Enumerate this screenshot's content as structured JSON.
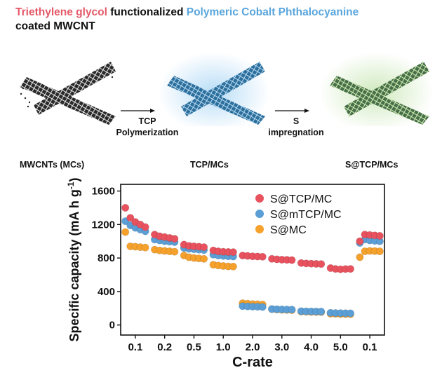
{
  "title": {
    "part1": "Triethylene glycol",
    "part2": " functionalized ",
    "part3": "Polymeric Cobalt Phthalocyanine",
    "line2": "coated MWCNT"
  },
  "stages": [
    {
      "label": "MWCNTs (MCs)",
      "color": "#1a1a1a"
    },
    {
      "label": "TCP/MCs",
      "color": "#3d7fb0"
    },
    {
      "label": "S@TCP/MCs",
      "color": "#7fae6a"
    }
  ],
  "arrows": [
    {
      "line1": "TCP",
      "line2": "Polymerization"
    },
    {
      "line1": "S",
      "line2": "impregnation"
    }
  ],
  "chart_data": {
    "type": "scatter",
    "xlabel": "C-rate",
    "ylabel": "Specific capacity (mA h g",
    "ylabel_sup": "-1",
    "ylabel_close": ")",
    "ylim": [
      -120,
      1680
    ],
    "yticks": [
      "0",
      "400",
      "800",
      "1200",
      "1600"
    ],
    "categories": [
      "0.1",
      "0.2",
      "0.5",
      "1.0",
      "2.0",
      "3.0",
      "4.0",
      "5.0",
      "0.1"
    ],
    "legend_position": "top-right",
    "series": [
      {
        "name": "S@TCP/MC",
        "color": "#e8525e",
        "values": [
          [
            1400,
            1280,
            1230,
            1200,
            1170
          ],
          [
            1080,
            1060,
            1050,
            1040,
            1030
          ],
          [
            960,
            945,
            940,
            935,
            930
          ],
          [
            890,
            880,
            875,
            872,
            870
          ],
          [
            830,
            825,
            820,
            818,
            815
          ],
          [
            790,
            785,
            780,
            778,
            775
          ],
          [
            740,
            735,
            732,
            730,
            728
          ],
          [
            680,
            670,
            665,
            668,
            670
          ],
          [
            1000,
            1080,
            1075,
            1070,
            1065
          ]
        ]
      },
      {
        "name": "S@mTCP/MC",
        "color": "#5b9fd6",
        "values": [
          [
            1240,
            1190,
            1160,
            1140,
            1120
          ],
          [
            1020,
            1010,
            1000,
            995,
            990
          ],
          [
            920,
            910,
            905,
            900,
            895
          ],
          [
            840,
            830,
            825,
            820,
            818
          ],
          [
            225,
            222,
            220,
            218,
            215
          ],
          [
            190,
            188,
            186,
            185,
            184
          ],
          [
            165,
            163,
            162,
            161,
            160
          ],
          [
            145,
            143,
            142,
            141,
            140
          ],
          [
            980,
            1020,
            1010,
            1005,
            1000
          ]
        ]
      },
      {
        "name": "S@MC",
        "color": "#f5a12c",
        "values": [
          [
            1110,
            940,
            935,
            930,
            925
          ],
          [
            900,
            890,
            885,
            880,
            875
          ],
          [
            830,
            810,
            800,
            795,
            790
          ],
          [
            720,
            710,
            705,
            700,
            698
          ],
          [
            260,
            255,
            250,
            248,
            245
          ],
          [
            190,
            185,
            182,
            180,
            178
          ],
          [
            160,
            158,
            156,
            155,
            154
          ],
          [
            135,
            133,
            131,
            130,
            129
          ],
          [
            810,
            880,
            885,
            883,
            880
          ]
        ]
      }
    ]
  }
}
